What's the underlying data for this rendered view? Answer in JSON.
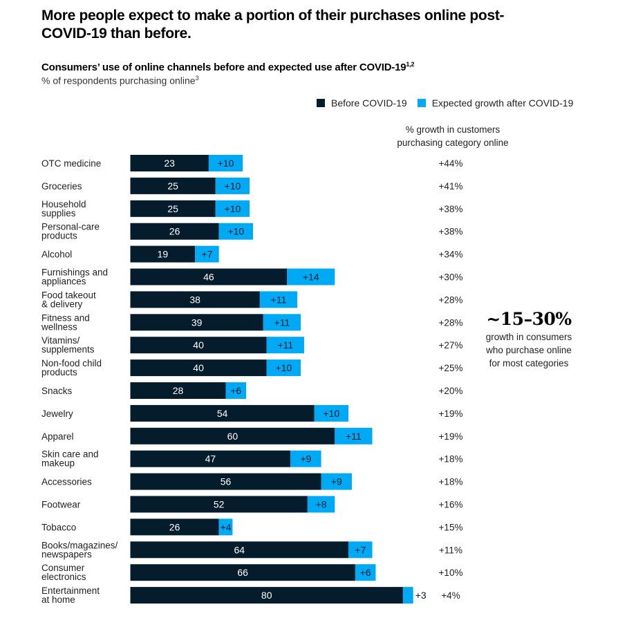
{
  "title": "More people expect to make a portion of their purchases online post-COVID-19 than before.",
  "subtitle": "Consumers’ use of online channels before and expected use after COVID-19",
  "subtitle_footnote": "1,2",
  "unit_label": "% of respondents purchasing online",
  "unit_footnote": "3",
  "legend": [
    {
      "label": "Before COVID-19",
      "color": "#051c2c"
    },
    {
      "label": "Expected growth after COVID-19",
      "color": "#00a9f4"
    }
  ],
  "growth_column_header": "% growth in customers purchasing category online",
  "callout": {
    "headline": "~15–30%",
    "text": "growth in consumers who purchase online for most categories"
  },
  "chart_data": {
    "type": "bar",
    "orientation": "horizontal",
    "stacked": true,
    "title": "Consumers’ use of online channels before and expected use after COVID-19",
    "xlabel": "",
    "ylabel": "% of respondents purchasing online",
    "xlim": [
      0,
      83
    ],
    "grid": false,
    "legend_position": "top-right",
    "categories": [
      [
        "OTC medicine"
      ],
      [
        "Groceries"
      ],
      [
        "Household",
        "supplies"
      ],
      [
        "Personal-care",
        "products"
      ],
      [
        "Alcohol"
      ],
      [
        "Furnishings and",
        "appliances"
      ],
      [
        "Food takeout",
        "& delivery"
      ],
      [
        "Fitness and",
        "wellness"
      ],
      [
        "Vitamins/",
        "supplements"
      ],
      [
        "Non-food child",
        "products"
      ],
      [
        "Snacks"
      ],
      [
        "Jewelry"
      ],
      [
        "Apparel"
      ],
      [
        "Skin care and",
        "makeup"
      ],
      [
        "Accessories"
      ],
      [
        "Footwear"
      ],
      [
        "Tobacco"
      ],
      [
        "Books/magazines/",
        "newspapers"
      ],
      [
        "Consumer",
        "electronics"
      ],
      [
        "Entertainment",
        "at home"
      ]
    ],
    "series": [
      {
        "name": "Before COVID-19",
        "color": "#051c2c",
        "values": [
          23,
          25,
          25,
          26,
          19,
          46,
          38,
          39,
          40,
          40,
          28,
          54,
          60,
          47,
          56,
          52,
          26,
          64,
          66,
          80
        ]
      },
      {
        "name": "Expected growth after COVID-19",
        "color": "#00a9f4",
        "values": [
          10,
          10,
          10,
          10,
          7,
          14,
          11,
          11,
          11,
          10,
          6,
          10,
          11,
          9,
          9,
          8,
          4,
          7,
          6,
          3
        ]
      }
    ],
    "growth_pct_labels": [
      "+44%",
      "+41%",
      "+38%",
      "+38%",
      "+34%",
      "+30%",
      "+28%",
      "+28%",
      "+27%",
      "+25%",
      "+20%",
      "+19%",
      "+19%",
      "+18%",
      "+18%",
      "+16%",
      "+15%",
      "+11%",
      "+10%",
      "+4%"
    ]
  }
}
